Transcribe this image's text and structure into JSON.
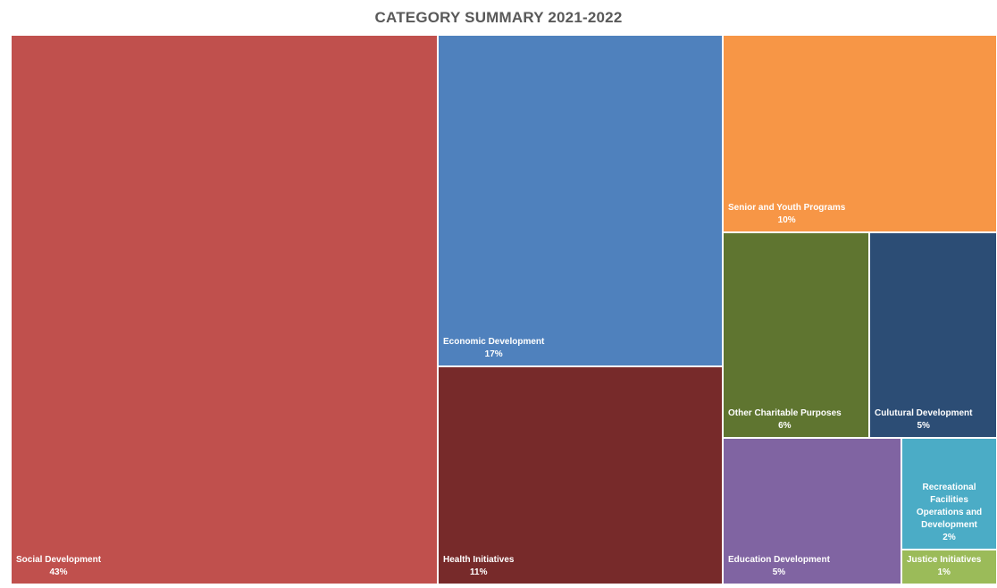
{
  "chart_data": {
    "type": "treemap",
    "title": "CATEGORY SUMMARY 2021-2022",
    "series": [
      {
        "label": "Social Development",
        "value_text": "43%",
        "value": 43,
        "color": "#C0504D"
      },
      {
        "label": "Economic Development",
        "value_text": "17%",
        "value": 17,
        "color": "#4F81BD"
      },
      {
        "label": "Health Initiatives",
        "value_text": "11%",
        "value": 11,
        "color": "#772A2A"
      },
      {
        "label": "Senior and Youth Programs",
        "value_text": "10%",
        "value": 10,
        "color": "#F79646"
      },
      {
        "label": "Other Charitable Purposes",
        "value_text": "6%",
        "value": 6,
        "color": "#5F7530"
      },
      {
        "label": "Culutural Development",
        "value_text": "5%",
        "value": 5,
        "color": "#2C4D75"
      },
      {
        "label": "Education Development",
        "value_text": "5%",
        "value": 5,
        "color": "#8064A2"
      },
      {
        "label": "Recreational Facilities Operations and Development",
        "value_text": "2%",
        "value": 2,
        "color": "#4BACC6"
      },
      {
        "label": "Justice Initiatives",
        "value_text": "1%",
        "value": 1,
        "color": "#9BBB59"
      }
    ]
  }
}
